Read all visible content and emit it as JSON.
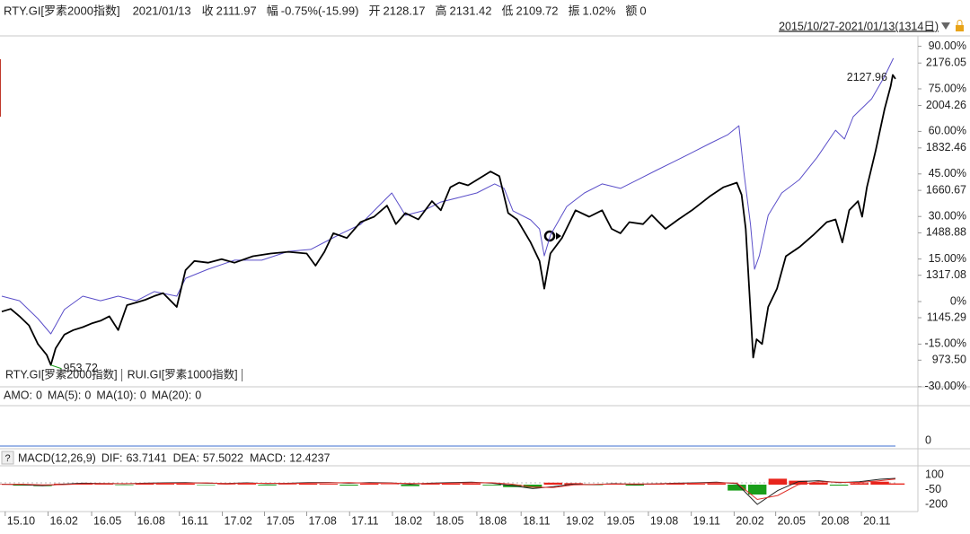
{
  "header": {
    "name": "RTY.GI[罗素2000指数]",
    "date": "2021/01/13",
    "fields": [
      {
        "label": "收",
        "value": "2111.97",
        "color": "#1a9e1a"
      },
      {
        "label": "幅",
        "value": "-0.75%(-15.99)",
        "color": "#1a9e1a"
      },
      {
        "label": "开",
        "value": "2128.17",
        "color": "#e0201b"
      },
      {
        "label": "高",
        "value": "2131.42",
        "color": "#e0201b"
      },
      {
        "label": "低",
        "value": "2109.72",
        "color": "#1a9e1a"
      },
      {
        "label": "振",
        "value": "1.02%",
        "color": "#222222"
      },
      {
        "label": "额",
        "value": "0",
        "color": "#222222"
      }
    ]
  },
  "chart_data": [
    {
      "type": "line",
      "subtitle": "2015/10/27-2021/01/13(1314日)",
      "xlim": [
        0,
        1313
      ],
      "xticks": [
        {
          "value": 5,
          "label": "15.10"
        },
        {
          "value": 68,
          "label": "16.02"
        },
        {
          "value": 132,
          "label": "16.05"
        },
        {
          "value": 196,
          "label": "16.08"
        },
        {
          "value": 261,
          "label": "16.11"
        },
        {
          "value": 324,
          "label": "17.02"
        },
        {
          "value": 386,
          "label": "17.05"
        },
        {
          "value": 448,
          "label": "17.08"
        },
        {
          "value": 511,
          "label": "17.11"
        },
        {
          "value": 574,
          "label": "18.02"
        },
        {
          "value": 635,
          "label": "18.05"
        },
        {
          "value": 698,
          "label": "18.08"
        },
        {
          "value": 763,
          "label": "18.11"
        },
        {
          "value": 826,
          "label": "19.02"
        },
        {
          "value": 886,
          "label": "19.05"
        },
        {
          "value": 950,
          "label": "19.08"
        },
        {
          "value": 1013,
          "label": "19.11"
        },
        {
          "value": 1076,
          "label": "20.02"
        },
        {
          "value": 1137,
          "label": "20.05"
        },
        {
          "value": 1201,
          "label": "20.08"
        },
        {
          "value": 1263,
          "label": "20.11"
        }
      ],
      "ylim": [
        865.6,
        2285.9
      ],
      "yticks": [
        2176.05,
        2004.26,
        1832.46,
        1660.67,
        1488.88,
        1317.08,
        1145.29,
        {
          "value": 973.5,
          "label": "973.50"
        }
      ],
      "y2lim": [
        -30.06,
        93.67
      ],
      "y2ticks": [
        {
          "value": 90,
          "label": "90.00%"
        },
        {
          "value": 75,
          "label": "75.00%"
        },
        {
          "value": 60,
          "label": "60.00%"
        },
        {
          "value": 45,
          "label": "45.00%"
        },
        {
          "value": 30,
          "label": "30.00%"
        },
        {
          "value": 15,
          "label": "15.00%"
        },
        {
          "value": 0,
          "label": "0%"
        },
        {
          "value": -15,
          "label": "-15.00%"
        },
        {
          "value": -30,
          "label": "-30.00%"
        }
      ],
      "extreme_labels": true,
      "max_color": "#e0201b",
      "min_color": "#1a9e1a",
      "series": [
        {
          "name": "RTY.GI[罗素2000指数]",
          "color": "#000000",
          "x": [
            0,
            13,
            26,
            40,
            53,
            66,
            72,
            79,
            92,
            105,
            119,
            132,
            145,
            158,
            171,
            184,
            198,
            211,
            224,
            237,
            257,
            270,
            283,
            303,
            323,
            342,
            369,
            395,
            421,
            448,
            461,
            474,
            487,
            507,
            527,
            547,
            566,
            579,
            593,
            612,
            632,
            645,
            659,
            672,
            685,
            698,
            718,
            731,
            744,
            757,
            777,
            790,
            797,
            806,
            823,
            843,
            863,
            882,
            896,
            909,
            922,
            942,
            955,
            975,
            994,
            1014,
            1040,
            1060,
            1080,
            1087,
            1093,
            1104,
            1109,
            1117,
            1126,
            1139,
            1152,
            1172,
            1192,
            1212,
            1225,
            1235,
            1245,
            1258,
            1264,
            1271,
            1284,
            1297,
            1306,
            1309,
            1313
          ],
          "values": [
            1170,
            1181,
            1151,
            1114,
            1039,
            995,
            953.72,
            1021,
            1077,
            1095,
            1107,
            1122,
            1133,
            1151,
            1095,
            1196,
            1207,
            1218,
            1233,
            1245,
            1189,
            1338,
            1375,
            1368,
            1382,
            1368,
            1394,
            1405,
            1412,
            1405,
            1356,
            1412,
            1487,
            1468,
            1532,
            1554,
            1599,
            1524,
            1569,
            1543,
            1617,
            1580,
            1673,
            1692,
            1681,
            1703,
            1737,
            1718,
            1569,
            1543,
            1450,
            1375,
            1263,
            1405,
            1468,
            1580,
            1554,
            1580,
            1505,
            1487,
            1532,
            1524,
            1561,
            1505,
            1543,
            1580,
            1636,
            1673,
            1692,
            1643,
            1505,
            984,
            1058,
            1039,
            1189,
            1263,
            1394,
            1431,
            1479,
            1532,
            1543,
            1450,
            1580,
            1617,
            1554,
            1673,
            1822,
            1990,
            2083,
            2127.96,
            2111.97
          ]
        },
        {
          "name": "RUI.GI[罗素1000指数]",
          "color": "#5b4fc9",
          "axis": "y2",
          "x": [
            0,
            26,
            53,
            72,
            92,
            119,
            145,
            171,
            198,
            224,
            257,
            270,
            303,
            342,
            382,
            421,
            454,
            474,
            500,
            527,
            553,
            573,
            593,
            619,
            645,
            672,
            698,
            724,
            738,
            751,
            777,
            790,
            797,
            806,
            830,
            856,
            882,
            909,
            935,
            961,
            988,
            1014,
            1040,
            1067,
            1083,
            1090,
            1100,
            1106,
            1113,
            1126,
            1146,
            1172,
            1198,
            1225,
            1238,
            1251,
            1278,
            1297,
            1310
          ],
          "values": [
            1.9,
            0.3,
            -6.0,
            -11.4,
            -2.8,
            1.9,
            0.3,
            1.9,
            0.3,
            3.5,
            1.9,
            8.2,
            11.4,
            14.6,
            14.6,
            17.7,
            18.4,
            20.9,
            24.1,
            27.2,
            33.5,
            38.3,
            30.4,
            32.0,
            35.1,
            36.7,
            38.3,
            41.5,
            39.9,
            32.0,
            28.8,
            25.6,
            16.1,
            23.4,
            33.5,
            38.3,
            41.5,
            39.9,
            43.0,
            46.2,
            49.4,
            52.5,
            55.7,
            58.9,
            62.0,
            46.2,
            27.2,
            11.4,
            16.1,
            30.4,
            38.3,
            43.0,
            50.9,
            60.4,
            57.3,
            65.2,
            71.5,
            79.4,
            85.8
          ]
        }
      ]
    },
    {
      "type": "bar",
      "ylim": [
        0,
        1
      ],
      "yticks": [
        0
      ],
      "series": [
        {
          "name": "AMO:",
          "color": "#000000",
          "x": [
            1313
          ],
          "values": [
            0
          ]
        },
        {
          "name": "MA(5):",
          "color": "#000000",
          "x": [
            1313
          ],
          "values": [
            0
          ]
        },
        {
          "name": "MA(10):",
          "color": "#d0021b",
          "x": [
            1313
          ],
          "values": [
            0
          ]
        },
        {
          "name": "MA(20):",
          "color": "#1f4fbf",
          "x": [
            1313
          ],
          "values": [
            0
          ]
        }
      ]
    },
    {
      "type": "macd",
      "title": "MACD(12,26,9)",
      "ylim": [
        -250,
        180
      ],
      "yticks": [
        100,
        -50,
        -200
      ],
      "pos_color": "#e8241c",
      "neg_color": "#1a9e1a",
      "series": [
        {
          "name": "DIF:",
          "type": "line",
          "color": "#222222",
          "x": [
            0,
            30,
            60,
            90,
            120,
            150,
            180,
            210,
            240,
            270,
            300,
            330,
            360,
            390,
            420,
            450,
            480,
            510,
            540,
            570,
            600,
            630,
            660,
            690,
            720,
            750,
            780,
            810,
            840,
            870,
            900,
            930,
            960,
            990,
            1020,
            1050,
            1080,
            1110,
            1140,
            1170,
            1200,
            1230,
            1260,
            1290,
            1313
          ],
          "values": [
            5,
            0,
            -10,
            5,
            15,
            12,
            8,
            15,
            18,
            20,
            15,
            12,
            18,
            10,
            14,
            20,
            22,
            15,
            20,
            18,
            5,
            15,
            20,
            25,
            15,
            -10,
            -40,
            -20,
            5,
            0,
            10,
            2,
            8,
            15,
            18,
            25,
            10,
            -200,
            -60,
            30,
            40,
            20,
            30,
            55,
            63.7141
          ]
        },
        {
          "name": "DEA:",
          "type": "line",
          "color": "#e0302a",
          "x": [
            0,
            30,
            60,
            90,
            120,
            150,
            180,
            210,
            240,
            270,
            300,
            330,
            360,
            390,
            420,
            450,
            480,
            510,
            540,
            570,
            600,
            630,
            660,
            690,
            720,
            750,
            780,
            810,
            840,
            870,
            900,
            930,
            960,
            990,
            1020,
            1050,
            1080,
            1110,
            1140,
            1170,
            1200,
            1230,
            1260,
            1290,
            1313
          ],
          "values": [
            2,
            5,
            -3,
            0,
            8,
            10,
            10,
            10,
            14,
            15,
            18,
            10,
            14,
            14,
            11,
            15,
            18,
            20,
            15,
            16,
            12,
            10,
            15,
            19,
            19,
            5,
            -25,
            -30,
            -3,
            2,
            6,
            7,
            6,
            10,
            14,
            19,
            16,
            -150,
            -110,
            0,
            30,
            25,
            22,
            40,
            57.5022
          ]
        },
        {
          "name": "MACD:",
          "type": "bar",
          "color": "#1a9e1a",
          "x": [
            0,
            30,
            60,
            90,
            120,
            150,
            180,
            210,
            240,
            270,
            300,
            330,
            360,
            390,
            420,
            450,
            480,
            510,
            540,
            570,
            600,
            630,
            660,
            690,
            720,
            750,
            780,
            810,
            840,
            870,
            900,
            930,
            960,
            990,
            1020,
            1050,
            1080,
            1110,
            1140,
            1170,
            1200,
            1230,
            1260,
            1290,
            1313
          ],
          "values": [
            5,
            -10,
            -15,
            10,
            15,
            5,
            -5,
            12,
            8,
            10,
            -5,
            5,
            8,
            -8,
            6,
            10,
            8,
            -10,
            10,
            5,
            -15,
            8,
            10,
            12,
            -8,
            -25,
            -30,
            20,
            15,
            -5,
            8,
            -10,
            5,
            10,
            8,
            12,
            -60,
            -100,
            60,
            40,
            20,
            -10,
            15,
            30,
            12.4237
          ]
        }
      ]
    }
  ]
}
